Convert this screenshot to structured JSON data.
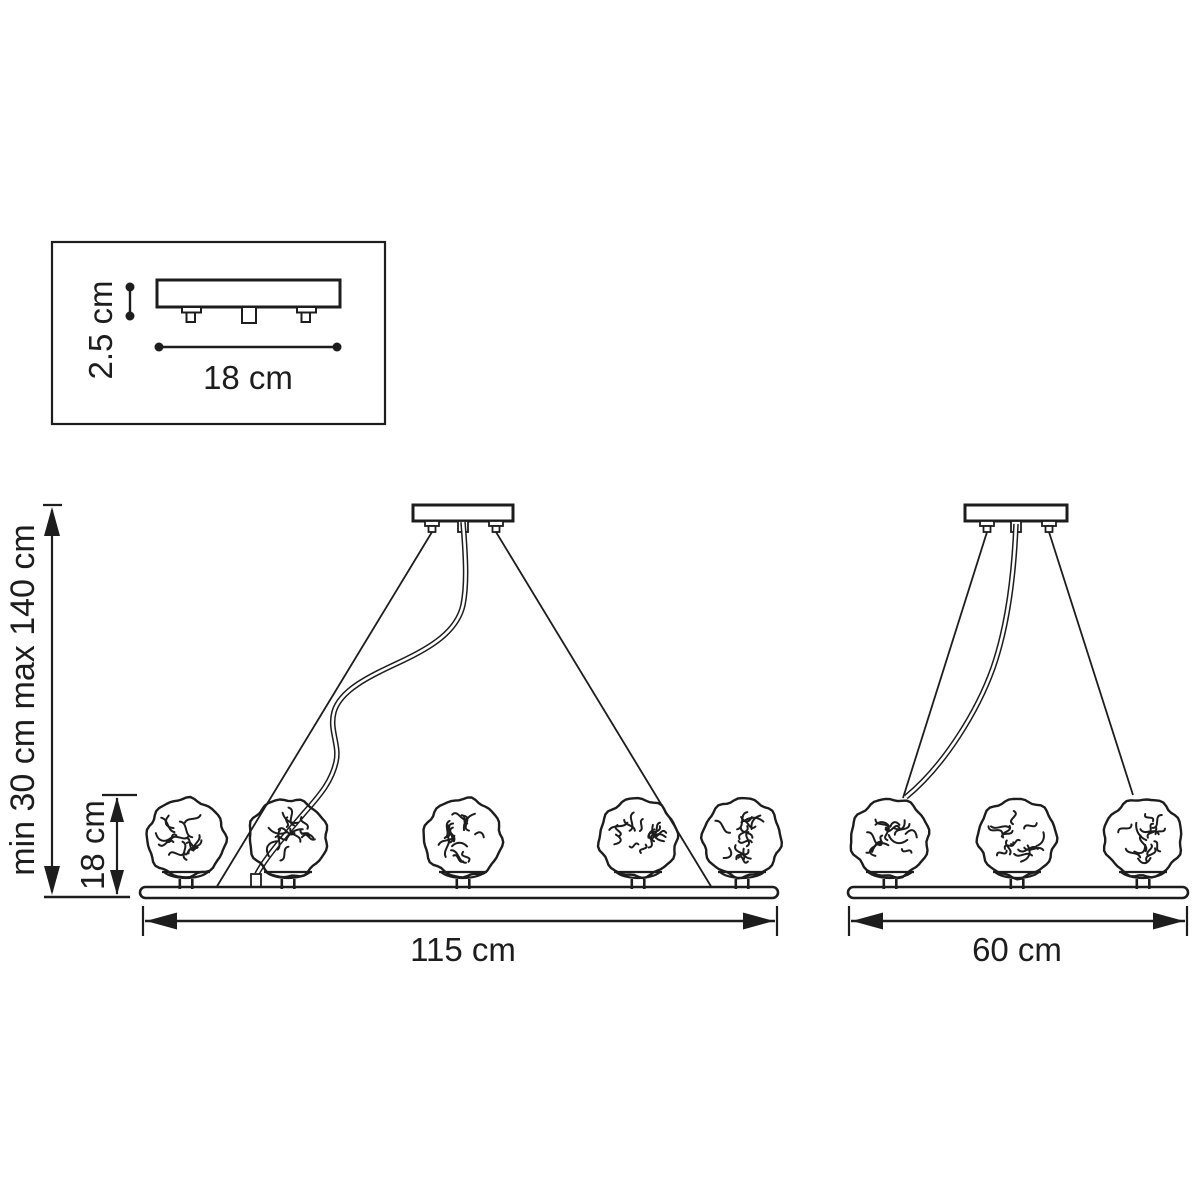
{
  "inset": {
    "height_label": "2.5 cm",
    "width_label": "18 cm"
  },
  "left_dims": {
    "drop_label": "min 30 cm max 140 cm",
    "shade_height_label": "18 cm"
  },
  "large_fixture": {
    "width_label": "115 cm",
    "shade_count": 5
  },
  "small_fixture": {
    "width_label": "60 cm",
    "shade_count": 3
  },
  "colors": {
    "line": "#1d1d1d",
    "background": "#ffffff"
  }
}
